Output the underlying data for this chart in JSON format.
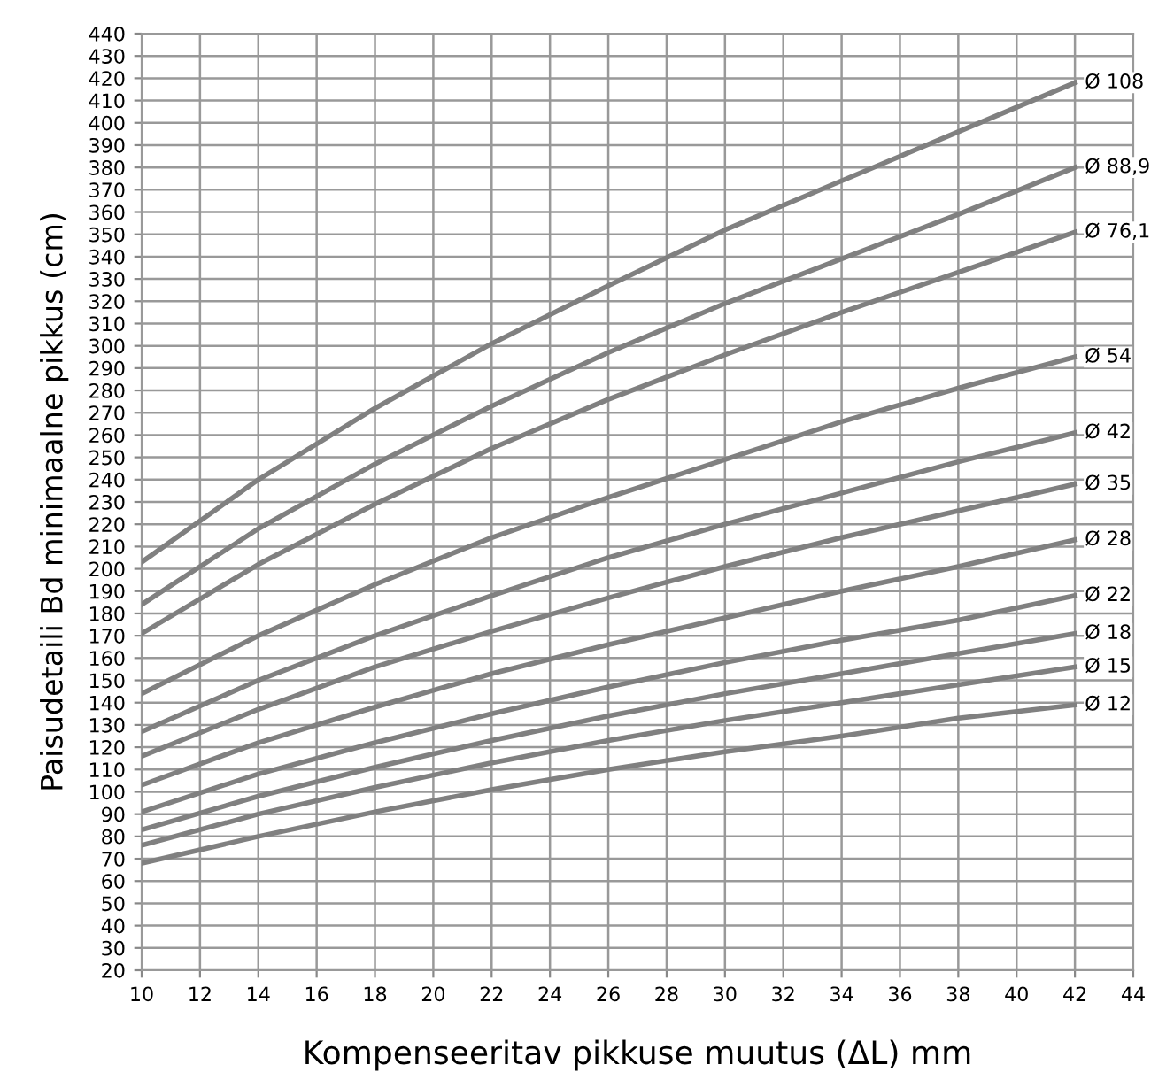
{
  "chart_data": {
    "type": "line",
    "xlabel": "Kompenseeritav pikkuse muutus (ΔL) mm",
    "ylabel": "Paisudetaili Bd minimaalne pikkus (cm)",
    "x": [
      10,
      14,
      18,
      22,
      26,
      30,
      34,
      38,
      42
    ],
    "series": [
      {
        "name": "Ø 108",
        "color": "#808080",
        "values": [
          203,
          240,
          272,
          301,
          327,
          352,
          374,
          396,
          418
        ]
      },
      {
        "name": "Ø 88,9",
        "color": "#808080",
        "values": [
          184,
          218,
          247,
          273,
          297,
          319,
          339,
          359,
          380
        ]
      },
      {
        "name": "Ø 76,1",
        "color": "#808080",
        "values": [
          171,
          202,
          229,
          254,
          276,
          296,
          315,
          333,
          351
        ]
      },
      {
        "name": "Ø 54",
        "color": "#808080",
        "values": [
          144,
          170,
          193,
          214,
          232,
          249,
          266,
          281,
          295
        ]
      },
      {
        "name": "Ø 42",
        "color": "#808080",
        "values": [
          127,
          150,
          170,
          188,
          205,
          220,
          234,
          248,
          261
        ]
      },
      {
        "name": "Ø 35",
        "color": "#808080",
        "values": [
          116,
          137,
          156,
          172,
          187,
          201,
          214,
          226,
          238
        ]
      },
      {
        "name": "Ø 28",
        "color": "#808080",
        "values": [
          103,
          122,
          138,
          153,
          166,
          178,
          190,
          201,
          213
        ]
      },
      {
        "name": "Ø 22",
        "color": "#808080",
        "values": [
          91,
          108,
          122,
          135,
          147,
          158,
          168,
          177,
          188
        ]
      },
      {
        "name": "Ø 18",
        "color": "#808080",
        "values": [
          83,
          98,
          111,
          123,
          134,
          144,
          153,
          162,
          171
        ]
      },
      {
        "name": "Ø 15",
        "color": "#808080",
        "values": [
          76,
          90,
          102,
          113,
          123,
          132,
          140,
          148,
          156
        ]
      },
      {
        "name": "Ø 12",
        "color": "#808080",
        "values": [
          68,
          80,
          91,
          101,
          110,
          118,
          125,
          133,
          139
        ]
      }
    ],
    "xlim": [
      10,
      44
    ],
    "xticks": [
      10,
      12,
      14,
      16,
      18,
      20,
      22,
      24,
      26,
      28,
      30,
      32,
      34,
      36,
      38,
      40,
      42,
      44
    ],
    "ylim": [
      20,
      440
    ],
    "yticks": [
      20,
      30,
      40,
      50,
      60,
      70,
      80,
      90,
      100,
      110,
      120,
      130,
      140,
      150,
      160,
      170,
      180,
      190,
      200,
      210,
      220,
      230,
      240,
      250,
      260,
      270,
      280,
      290,
      300,
      310,
      320,
      330,
      340,
      350,
      360,
      370,
      380,
      390,
      400,
      410,
      420,
      430,
      440
    ],
    "grid": true,
    "legend": false,
    "marker": "none",
    "line_style": "solid"
  }
}
